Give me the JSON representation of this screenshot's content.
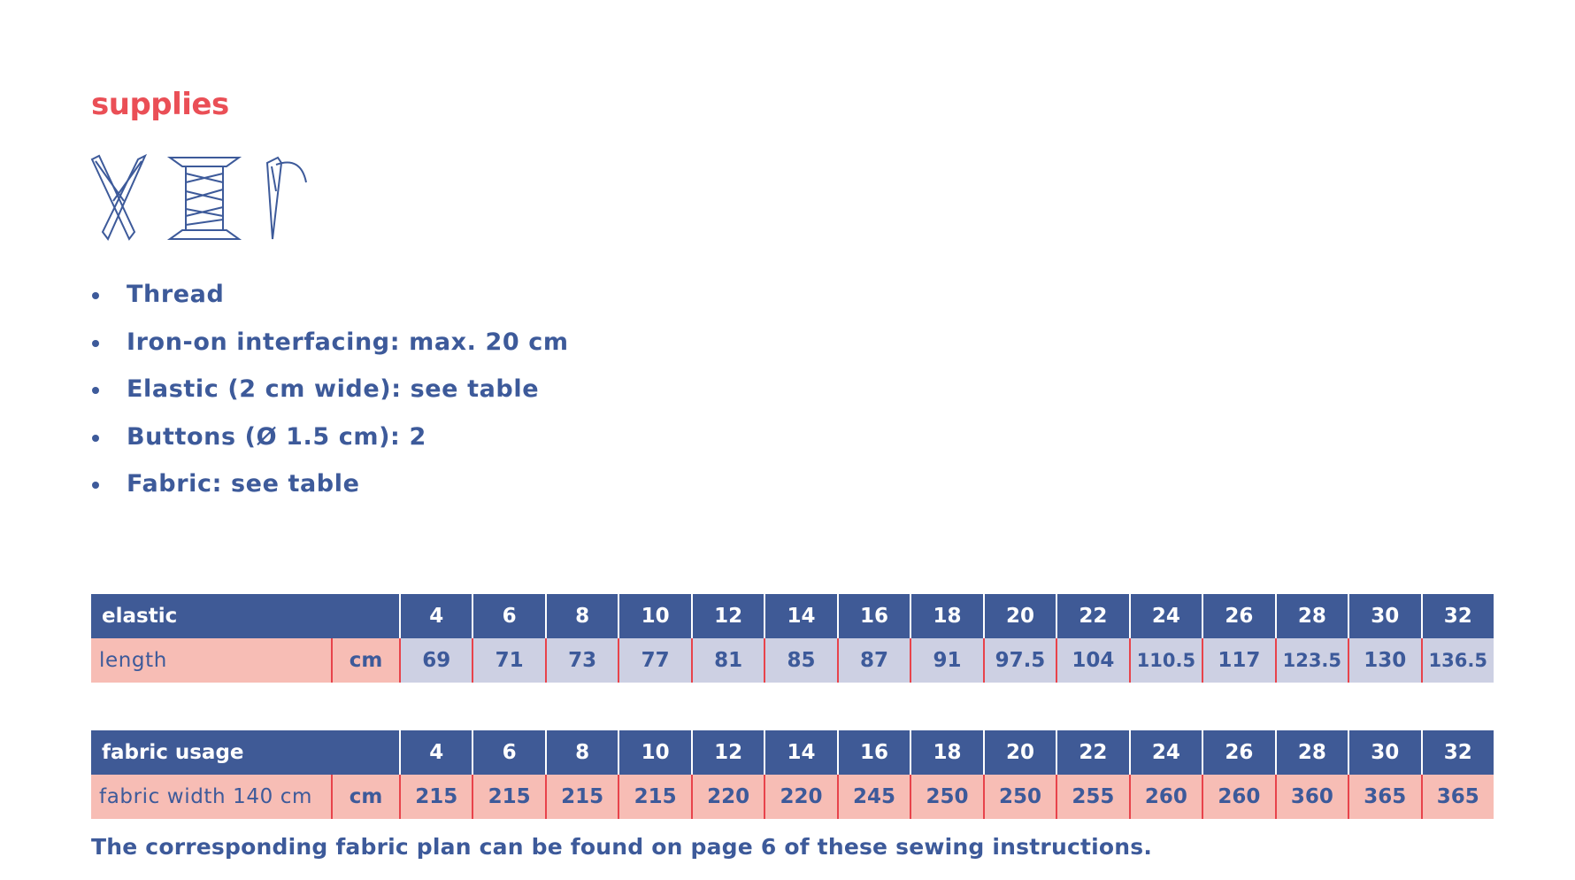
{
  "title": "supplies",
  "supplies": [
    "Thread",
    "Iron-on interfacing: max. 20 cm",
    "Elastic (2 cm wide): see table",
    "Buttons (Ø 1.5 cm): 2",
    "Fabric: see table"
  ],
  "tables": [
    {
      "header": "elastic",
      "sizes": [
        4,
        6,
        8,
        10,
        12,
        14,
        16,
        18,
        20,
        22,
        24,
        26,
        28,
        30,
        32
      ],
      "row_label": "length",
      "unit": "cm",
      "values": [
        69,
        71,
        73,
        77,
        81,
        85,
        87,
        91,
        97.5,
        104,
        110.5,
        117,
        123.5,
        130,
        136.5
      ]
    },
    {
      "header": "fabric usage",
      "sizes": [
        4,
        6,
        8,
        10,
        12,
        14,
        16,
        18,
        20,
        22,
        24,
        26,
        28,
        30,
        32
      ],
      "row_label": "fabric width 140 cm",
      "unit": "cm",
      "values": [
        215,
        215,
        215,
        215,
        220,
        220,
        245,
        250,
        250,
        255,
        260,
        260,
        360,
        365,
        365
      ]
    }
  ],
  "footnote": "The corresponding fabric plan can be found on page 6 of these sewing instructions."
}
